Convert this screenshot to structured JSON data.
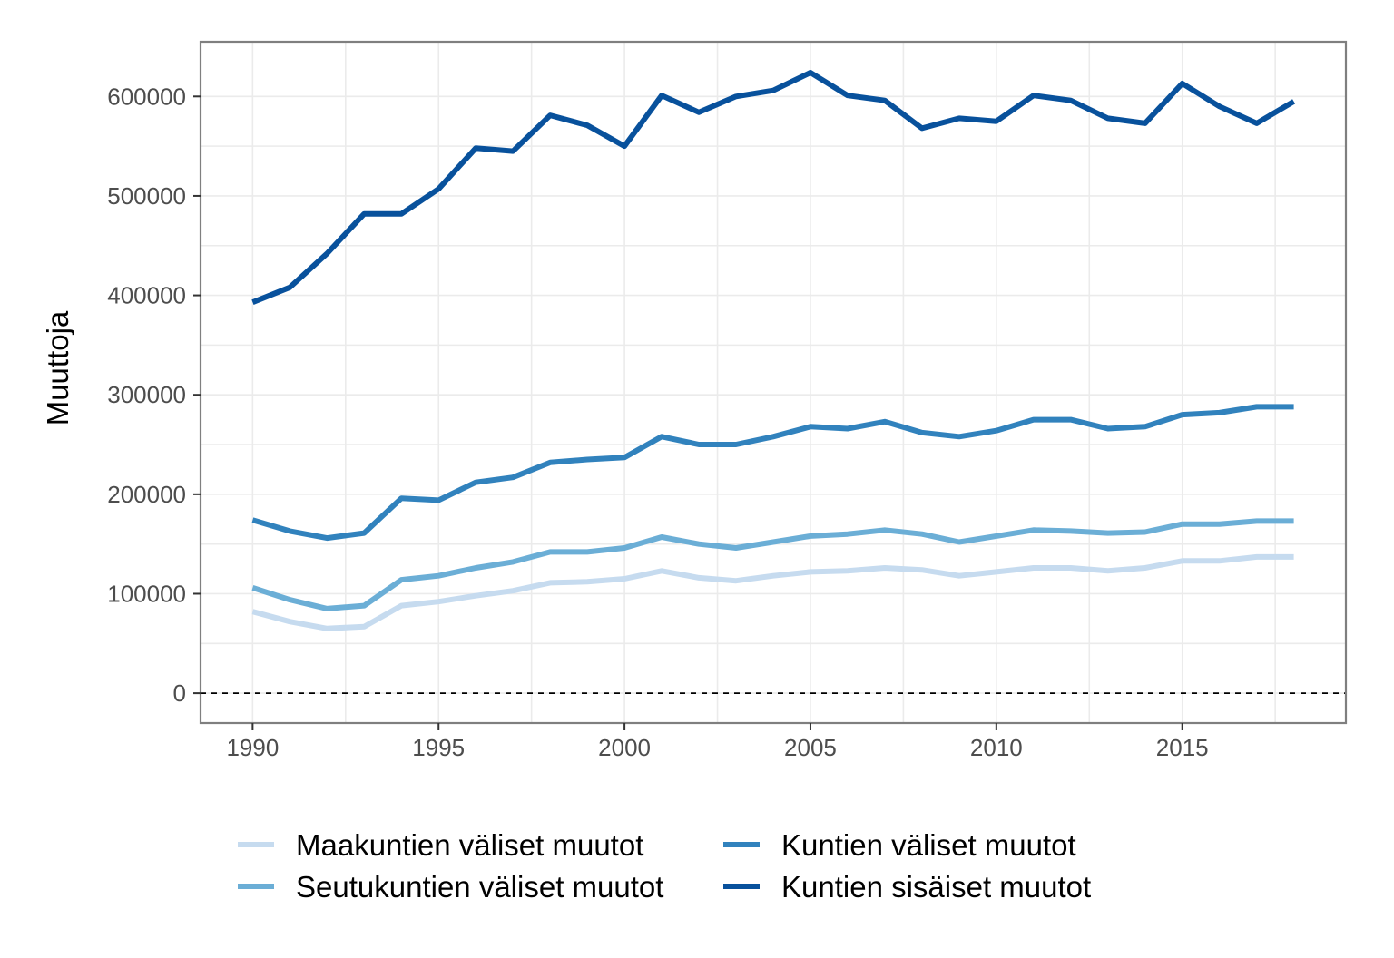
{
  "chart_data": {
    "type": "line",
    "title": "",
    "xlabel": "",
    "ylabel": "Muuttoja",
    "x": [
      1990,
      1991,
      1992,
      1993,
      1994,
      1995,
      1996,
      1997,
      1998,
      1999,
      2000,
      2001,
      2002,
      2003,
      2004,
      2005,
      2006,
      2007,
      2008,
      2009,
      2010,
      2011,
      2012,
      2013,
      2014,
      2015,
      2016,
      2017,
      2018
    ],
    "xlim": [
      1988.6,
      2019.4
    ],
    "ylim": [
      -30000,
      655000
    ],
    "xticks": [
      1990,
      1995,
      2000,
      2005,
      2010,
      2015
    ],
    "yticks": [
      0,
      100000,
      200000,
      300000,
      400000,
      500000,
      600000
    ],
    "xtick_labels": [
      "1990",
      "1995",
      "2000",
      "2005",
      "2010",
      "2015"
    ],
    "ytick_labels": [
      "0",
      "100000",
      "200000",
      "300000",
      "400000",
      "500000",
      "600000"
    ],
    "grid": true,
    "reference_line": {
      "y": 0,
      "style": "dashed"
    },
    "legend_position": "bottom",
    "series": [
      {
        "name": "Maakuntien väliset muutot",
        "color": "#c6dbef",
        "values": [
          82000,
          72000,
          65000,
          67000,
          88000,
          92000,
          98000,
          103000,
          111000,
          112000,
          115000,
          123000,
          116000,
          113000,
          118000,
          122000,
          123000,
          126000,
          124000,
          118000,
          122000,
          126000,
          126000,
          123000,
          126000,
          133000,
          133000,
          137000,
          137000
        ]
      },
      {
        "name": "Seutukuntien väliset muutot",
        "color": "#6baed6",
        "values": [
          106000,
          94000,
          85000,
          88000,
          114000,
          118000,
          126000,
          132000,
          142000,
          142000,
          146000,
          157000,
          150000,
          146000,
          152000,
          158000,
          160000,
          164000,
          160000,
          152000,
          158000,
          164000,
          163000,
          161000,
          162000,
          170000,
          170000,
          173000,
          173000
        ]
      },
      {
        "name": "Kuntien väliset muutot",
        "color": "#3182bd",
        "values": [
          174000,
          163000,
          156000,
          161000,
          196000,
          194000,
          212000,
          217000,
          232000,
          235000,
          237000,
          258000,
          250000,
          250000,
          258000,
          268000,
          266000,
          273000,
          262000,
          258000,
          264000,
          275000,
          275000,
          266000,
          268000,
          280000,
          282000,
          288000,
          288000
        ]
      },
      {
        "name": "Kuntien sisäiset muutot",
        "color": "#08519c",
        "values": [
          393000,
          408000,
          442000,
          482000,
          482000,
          507000,
          548000,
          545000,
          581000,
          571000,
          550000,
          601000,
          584000,
          600000,
          606000,
          624000,
          601000,
          596000,
          568000,
          578000,
          575000,
          601000,
          596000,
          578000,
          573000,
          613000,
          590000,
          573000,
          595000
        ]
      }
    ]
  }
}
